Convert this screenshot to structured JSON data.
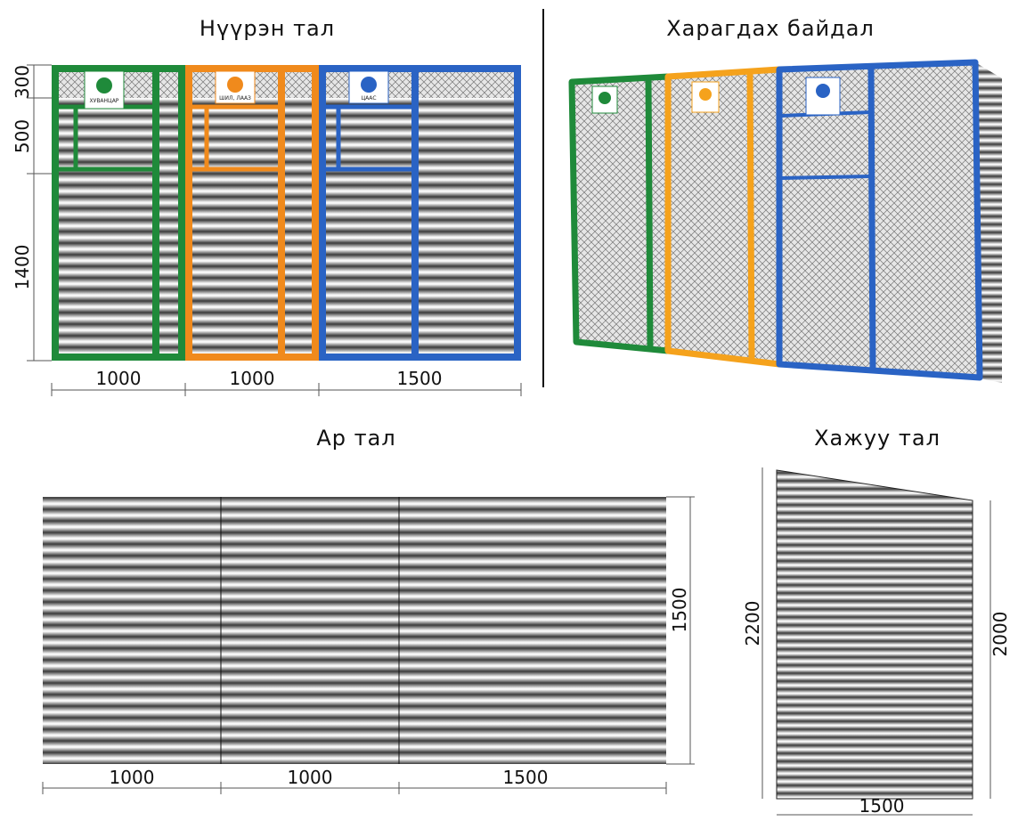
{
  "front": {
    "title": "Нүүрэн тал",
    "heights": [
      "300",
      "500",
      "1400"
    ],
    "widths": [
      "1000",
      "1000",
      "1500"
    ],
    "signs": [
      "ХУВАНЦАР",
      "ШИЛ, ЛААЗ",
      "ЦААС"
    ]
  },
  "perspective": {
    "title": "Харагдах байдал"
  },
  "back": {
    "title": "Ар тал",
    "widths": [
      "1000",
      "1000",
      "1500"
    ],
    "height": "1500"
  },
  "side": {
    "title": "Хажуу тал",
    "left_height": "2200",
    "right_height": "2000",
    "width": "1500"
  }
}
